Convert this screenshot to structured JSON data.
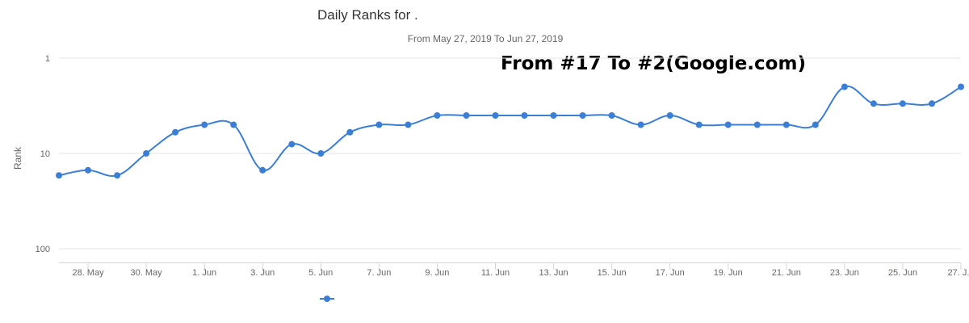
{
  "chart_data": {
    "type": "line",
    "title": "Daily Ranks for .",
    "subtitle": "From May 27, 2019 To Jun 27, 2019",
    "annotation": "From #17 To #2(Google.com)",
    "ylabel": "Rank",
    "yscale": "log",
    "yreversed": true,
    "ylim": [
      1,
      100
    ],
    "y_ticks": [
      "1",
      "10",
      "100"
    ],
    "x_tick_labels": [
      "28. May",
      "30. May",
      "1. Jun",
      "3. Jun",
      "5. Jun",
      "7. Jun",
      "9. Jun",
      "11. Jun",
      "13. Jun",
      "15. Jun",
      "17. Jun",
      "19. Jun",
      "21. Jun",
      "23. Jun",
      "25. Jun",
      "27. J..."
    ],
    "categories": [
      "May 27",
      "May 28",
      "May 29",
      "May 30",
      "May 31",
      "Jun 1",
      "Jun 2",
      "Jun 3",
      "Jun 4",
      "Jun 5",
      "Jun 6",
      "Jun 7",
      "Jun 8",
      "Jun 9",
      "Jun 10",
      "Jun 11",
      "Jun 12",
      "Jun 13",
      "Jun 14",
      "Jun 15",
      "Jun 16",
      "Jun 17",
      "Jun 18",
      "Jun 19",
      "Jun 20",
      "Jun 21",
      "Jun 22",
      "Jun 23",
      "Jun 24",
      "Jun 25",
      "Jun 26",
      "Jun 27"
    ],
    "series": [
      {
        "name": "",
        "color": "#3a7fd5",
        "values": [
          17,
          15,
          17,
          10,
          6,
          5,
          5,
          15,
          8,
          10,
          6,
          5,
          5,
          4,
          4,
          4,
          4,
          4,
          4,
          4,
          5,
          4,
          5,
          5,
          5,
          5,
          5,
          2,
          3,
          3,
          3,
          2
        ]
      }
    ],
    "grid": true,
    "legend_position": "bottom-left"
  }
}
